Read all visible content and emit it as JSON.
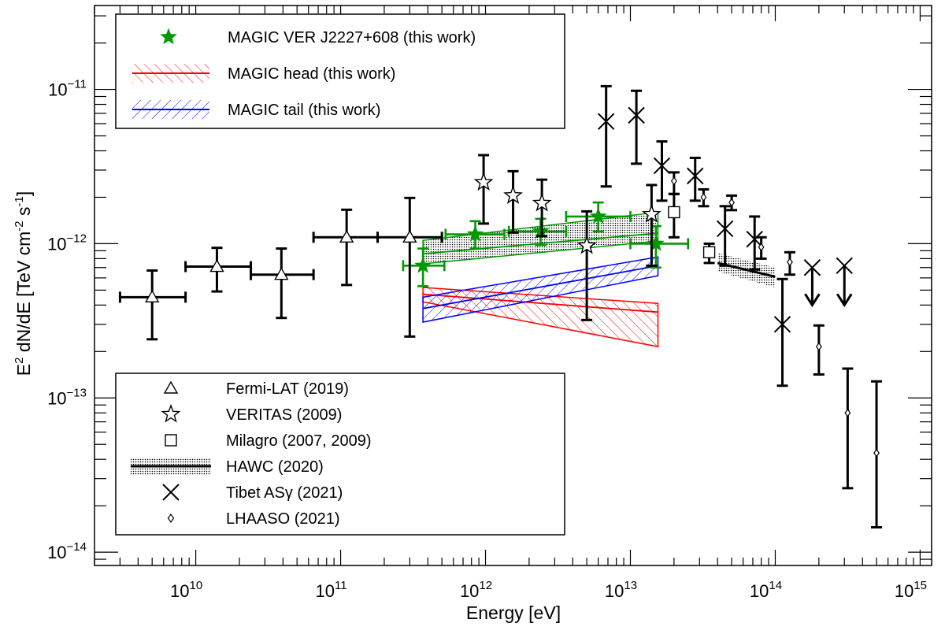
{
  "chart_data": {
    "type": "scatter",
    "title": "",
    "xlabel": "Energy [eV]",
    "ylabel": "E",
    "ylabel_sup": "2",
    "ylabel_rest": " dN/dE [TeV cm",
    "ylabel_sup2": "-2",
    "ylabel_mid": " s",
    "ylabel_sup3": "-1",
    "ylabel_end": "]",
    "x_scale": "log",
    "y_scale": "log",
    "xlim": [
      2000000000.0,
      1200000000000000.0
    ],
    "ylim": [
      8.2e-15,
      3.5e-11
    ],
    "x_ticks": [
      {
        "base": "10",
        "exp": "10",
        "value": 10000000000.0
      },
      {
        "base": "10",
        "exp": "11",
        "value": 100000000000.0
      },
      {
        "base": "10",
        "exp": "12",
        "value": 1000000000000.0
      },
      {
        "base": "10",
        "exp": "13",
        "value": 10000000000000.0
      },
      {
        "base": "10",
        "exp": "14",
        "value": 100000000000000.0
      },
      {
        "base": "10",
        "exp": "15",
        "value": 1000000000000000.0
      }
    ],
    "y_ticks": [
      {
        "base": "10",
        "exp": "−14",
        "value": 1e-14
      },
      {
        "base": "10",
        "exp": "−13",
        "value": 1e-13
      },
      {
        "base": "10",
        "exp": "−12",
        "value": 1e-12
      },
      {
        "base": "10",
        "exp": "−11",
        "value": 1e-11
      }
    ],
    "legend_top": [
      {
        "label": "MAGIC VER J2227+608 (this work)",
        "marker": "star-filled",
        "color": "#009900"
      },
      {
        "label": "MAGIC head (this work)",
        "marker": "band-hatched",
        "color": "#ff0000"
      },
      {
        "label": "MAGIC tail (this work)",
        "marker": "band-hatched",
        "color": "#0000ff"
      }
    ],
    "legend_bottom": [
      {
        "label": "Fermi-LAT (2019)",
        "marker": "triangle-open"
      },
      {
        "label": "VERITAS (2009)",
        "marker": "star-open"
      },
      {
        "label": "Milagro (2007, 2009)",
        "marker": "square-open"
      },
      {
        "label": "HAWC (2020)",
        "marker": "band-dotted"
      },
      {
        "label": "Tibet ASγ (2021)",
        "marker": "cross"
      },
      {
        "label": "LHAASO (2021)",
        "marker": "diamond-open"
      }
    ],
    "series": [
      {
        "name": "MAGIC VER J2227+608 (this work)",
        "color": "#009900",
        "marker": "star-filled",
        "points": [
          {
            "x": 370000000000.0,
            "y": 7.2e-13,
            "xlo": 270000000000.0,
            "xhi": 520000000000.0,
            "ylo": 5.3e-13,
            "yhi": 9.3e-13
          },
          {
            "x": 850000000000.0,
            "y": 1.15e-12,
            "xlo": 530000000000.0,
            "xhi": 1350000000000.0,
            "ylo": 9.3e-13,
            "yhi": 1.4e-12
          },
          {
            "x": 2400000000000.0,
            "y": 1.2e-12,
            "xlo": 1450000000000.0,
            "xhi": 3600000000000.0,
            "ylo": 9.8e-13,
            "yhi": 1.45e-12
          },
          {
            "x": 6000000000000.0,
            "y": 1.5e-12,
            "xlo": 3600000000000.0,
            "xhi": 10000000000000.0,
            "ylo": 1.2e-12,
            "yhi": 1.85e-12
          },
          {
            "x": 15000000000000.0,
            "y": 1e-12,
            "xlo": 10000000000000.0,
            "xhi": 25000000000000.0,
            "ylo": 7e-13,
            "yhi": 1.3e-12
          }
        ]
      },
      {
        "name": "Fermi-LAT (2019)",
        "color": "#000000",
        "marker": "triangle-open",
        "points": [
          {
            "x": 5000000000.0,
            "y": 4.5e-13,
            "xlo": 3000000000.0,
            "xhi": 8500000000.0,
            "ylo": 2.4e-13,
            "yhi": 6.7e-13
          },
          {
            "x": 14000000000.0,
            "y": 7.1e-13,
            "xlo": 8500000000.0,
            "xhi": 24000000000.0,
            "ylo": 4.9e-13,
            "yhi": 9.4e-13
          },
          {
            "x": 39000000000.0,
            "y": 6.3e-13,
            "xlo": 24000000000.0,
            "xhi": 65000000000.0,
            "ylo": 3.3e-13,
            "yhi": 9.3e-13
          },
          {
            "x": 110000000000.0,
            "y": 1.1e-12,
            "xlo": 65000000000.0,
            "xhi": 180000000000.0,
            "ylo": 5.4e-13,
            "yhi": 1.66e-12
          },
          {
            "x": 300000000000.0,
            "y": 1.1e-12,
            "xlo": 180000000000.0,
            "xhi": 500000000000.0,
            "ylo": 2.5e-13,
            "yhi": 1.98e-12
          }
        ]
      },
      {
        "name": "VERITAS (2009)",
        "color": "#000000",
        "marker": "star-open",
        "points": [
          {
            "x": 970000000000.0,
            "y": 2.5e-12,
            "ylo": 1.35e-12,
            "yhi": 3.75e-12
          },
          {
            "x": 1550000000000.0,
            "y": 2.05e-12,
            "ylo": 1.18e-12,
            "yhi": 2.95e-12
          },
          {
            "x": 2450000000000.0,
            "y": 1.83e-12,
            "ylo": 1.12e-12,
            "yhi": 2.6e-12
          },
          {
            "x": 5000000000000.0,
            "y": 9.7e-13,
            "ylo": 3.2e-13,
            "yhi": 1.62e-12
          },
          {
            "x": 14000000000000.0,
            "y": 1.55e-12,
            "ylo": 7.2e-13,
            "yhi": 2.4e-12
          }
        ]
      },
      {
        "name": "Milagro (2007, 2009)",
        "color": "#000000",
        "marker": "square-open",
        "points": [
          {
            "x": 20000000000000.0,
            "y": 1.6e-12,
            "ylo": 1.1e-12,
            "yhi": 2.1e-12
          },
          {
            "x": 35000000000000.0,
            "y": 8.8e-13,
            "ylo": 7.5e-13,
            "yhi": 1e-12
          }
        ]
      },
      {
        "name": "Tibet ASγ (2021)",
        "color": "#000000",
        "marker": "cross",
        "points": [
          {
            "x": 6800000000000.0,
            "y": 6.2e-12,
            "ylo": 2.35e-12,
            "yhi": 1.05e-11
          },
          {
            "x": 11000000000000.0,
            "y": 6.8e-12,
            "ylo": 3.3e-12,
            "yhi": 9.8e-12
          },
          {
            "x": 16500000000000.0,
            "y": 3.2e-12,
            "ylo": 1.9e-12,
            "yhi": 4.6e-12
          },
          {
            "x": 28000000000000.0,
            "y": 2.75e-12,
            "ylo": 1.9e-12,
            "yhi": 3.6e-12
          },
          {
            "x": 45000000000000.0,
            "y": 1.25e-12,
            "ylo": 7.2e-13,
            "yhi": 1.75e-12
          },
          {
            "x": 72000000000000.0,
            "y": 1.07e-12,
            "ylo": 6.8e-13,
            "yhi": 1.5e-12
          },
          {
            "x": 112000000000000.0,
            "y": 3e-13,
            "ylo": 1.2e-13,
            "yhi": 5.9e-13
          },
          {
            "x": 180000000000000.0,
            "y": 7e-13,
            "upper_limit": true,
            "arrow_to": 4e-13
          },
          {
            "x": 300000000000000.0,
            "y": 7.2e-13,
            "upper_limit": true,
            "arrow_to": 4e-13
          }
        ]
      },
      {
        "name": "LHAASO (2021)",
        "color": "#000000",
        "marker": "diamond-open",
        "points": [
          {
            "x": 20000000000000.0,
            "y": 2.55e-12,
            "ylo": 2.1e-12,
            "yhi": 2.9e-12
          },
          {
            "x": 32000000000000.0,
            "y": 2e-12,
            "ylo": 1.75e-12,
            "yhi": 2.25e-12
          },
          {
            "x": 50000000000000.0,
            "y": 1.85e-12,
            "ylo": 1.65e-12,
            "yhi": 2.05e-12
          },
          {
            "x": 80000000000000.0,
            "y": 9.5e-13,
            "ylo": 8e-13,
            "yhi": 1.1e-12
          },
          {
            "x": 126000000000000.0,
            "y": 7.6e-13,
            "ylo": 6.3e-13,
            "yhi": 8.8e-13
          },
          {
            "x": 200000000000000.0,
            "y": 2.15e-13,
            "ylo": 1.42e-13,
            "yhi": 2.95e-13
          },
          {
            "x": 316000000000000.0,
            "y": 8e-14,
            "ylo": 2.6e-14,
            "yhi": 1.55e-13
          },
          {
            "x": 500000000000000.0,
            "y": 4.4e-14,
            "ylo": 1.45e-14,
            "yhi": 1.28e-13
          }
        ]
      }
    ],
    "bands": [
      {
        "name": "MAGIC head (this work)",
        "color": "#ff0000",
        "fill": "hatch",
        "x": [
          370000000000.0,
          15500000000000.0
        ],
        "y": [
          4.7e-13,
          3.6e-13
        ],
        "upper": [
          5.2e-13,
          4.1e-13
        ],
        "lower": [
          4.2e-13,
          2.15e-13
        ]
      },
      {
        "name": "MAGIC tail (this work)",
        "color": "#0000ff",
        "fill": "hatch",
        "x": [
          370000000000.0,
          15500000000000.0
        ],
        "y": [
          3.8e-13,
          7.2e-13
        ],
        "upper": [
          4.5e-13,
          8.2e-13
        ],
        "lower": [
          3.1e-13,
          6.2e-13
        ]
      },
      {
        "name": "MAGIC VER J2227+608 band",
        "color": "#009900",
        "fill": "dots",
        "x": [
          370000000000.0,
          15500000000000.0
        ],
        "y": [
          8.6e-13,
          1.17e-12
        ],
        "upper": [
          1.05e-12,
          1.6e-12
        ],
        "lower": [
          7.4e-13,
          1.04e-12
        ]
      },
      {
        "name": "HAWC (2020)",
        "color": "#000000",
        "fill": "dots",
        "x": [
          40000000000000.0,
          100000000000000.0
        ],
        "y": [
          7.5e-13,
          6.1e-13
        ],
        "upper": [
          8.7e-13,
          7e-13
        ],
        "lower": [
          6.6e-13,
          5.2e-13
        ]
      }
    ]
  }
}
